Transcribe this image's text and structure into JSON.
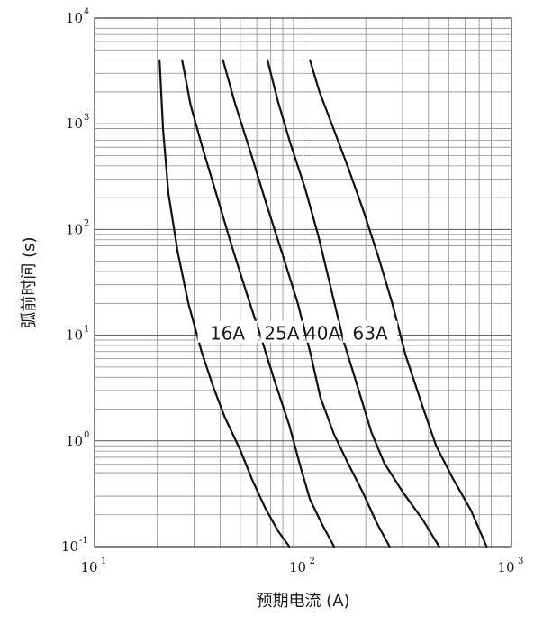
{
  "chart_data": {
    "type": "line",
    "title": "",
    "xlabel": "预期电流 (A)",
    "ylabel": "弧前时间 (s)",
    "x_scale": "log",
    "y_scale": "log",
    "xlim": [
      10,
      1000
    ],
    "ylim": [
      0.1,
      10000
    ],
    "grid": true,
    "x_ticks": [
      {
        "base": "10",
        "exp": "1",
        "value": 10
      },
      {
        "base": "10",
        "exp": "2",
        "value": 100
      },
      {
        "base": "10",
        "exp": "3",
        "value": 1000
      }
    ],
    "y_ticks": [
      {
        "base": "10",
        "exp": "-1",
        "value": 0.1
      },
      {
        "base": "10",
        "exp": "0",
        "value": 1
      },
      {
        "base": "10",
        "exp": "1",
        "value": 10
      },
      {
        "base": "10",
        "exp": "2",
        "value": 100
      },
      {
        "base": "10",
        "exp": "3",
        "value": 1000
      },
      {
        "base": "10",
        "exp": "4",
        "value": 10000
      }
    ],
    "series": [
      {
        "name": "16A",
        "points": [
          [
            20.5,
            4000
          ],
          [
            21.3,
            900
          ],
          [
            22.6,
            220
          ],
          [
            25.1,
            60
          ],
          [
            28.2,
            20
          ],
          [
            32.6,
            7
          ],
          [
            37.2,
            3.2
          ],
          [
            42,
            1.7
          ],
          [
            50,
            0.82
          ],
          [
            57,
            0.43
          ],
          [
            66,
            0.23
          ],
          [
            76,
            0.14
          ],
          [
            86,
            0.1
          ]
        ]
      },
      {
        "name": "25A",
        "points": [
          [
            26.3,
            4000
          ],
          [
            28.9,
            1500
          ],
          [
            32.9,
            600
          ],
          [
            38.3,
            220
          ],
          [
            45.5,
            70
          ],
          [
            54,
            24
          ],
          [
            63.5,
            9
          ],
          [
            73,
            3.7
          ],
          [
            86,
            1.4
          ],
          [
            97,
            0.58
          ],
          [
            108,
            0.28
          ],
          [
            124,
            0.16
          ],
          [
            141,
            0.1
          ]
        ]
      },
      {
        "name": "40A",
        "points": [
          [
            41.3,
            4000
          ],
          [
            47,
            1600
          ],
          [
            55.8,
            550
          ],
          [
            66.4,
            180
          ],
          [
            79.3,
            60
          ],
          [
            94.4,
            20
          ],
          [
            109,
            6.5
          ],
          [
            121,
            2.6
          ],
          [
            141,
            1.15
          ],
          [
            164,
            0.62
          ],
          [
            193,
            0.33
          ],
          [
            225,
            0.17
          ],
          [
            260,
            0.1
          ]
        ]
      },
      {
        "name": "63A",
        "points": [
          [
            67.5,
            4000
          ],
          [
            76,
            1600
          ],
          [
            87,
            650
          ],
          [
            102,
            250
          ],
          [
            118,
            90
          ],
          [
            136,
            28
          ],
          [
            156,
            9
          ],
          [
            185,
            3
          ],
          [
            213,
            1.2
          ],
          [
            245,
            0.62
          ],
          [
            300,
            0.33
          ],
          [
            375,
            0.18
          ],
          [
            450,
            0.1
          ]
        ]
      },
      {
        "name": "",
        "points": [
          [
            108,
            4000
          ],
          [
            120,
            2000
          ],
          [
            140,
            900
          ],
          [
            165,
            380
          ],
          [
            195,
            150
          ],
          [
            230,
            55
          ],
          [
            268,
            20
          ],
          [
            310,
            6.5
          ],
          [
            375,
            2.1
          ],
          [
            435,
            0.9
          ],
          [
            520,
            0.45
          ],
          [
            640,
            0.22
          ],
          [
            760,
            0.1
          ]
        ]
      }
    ],
    "label_y": 11
  }
}
